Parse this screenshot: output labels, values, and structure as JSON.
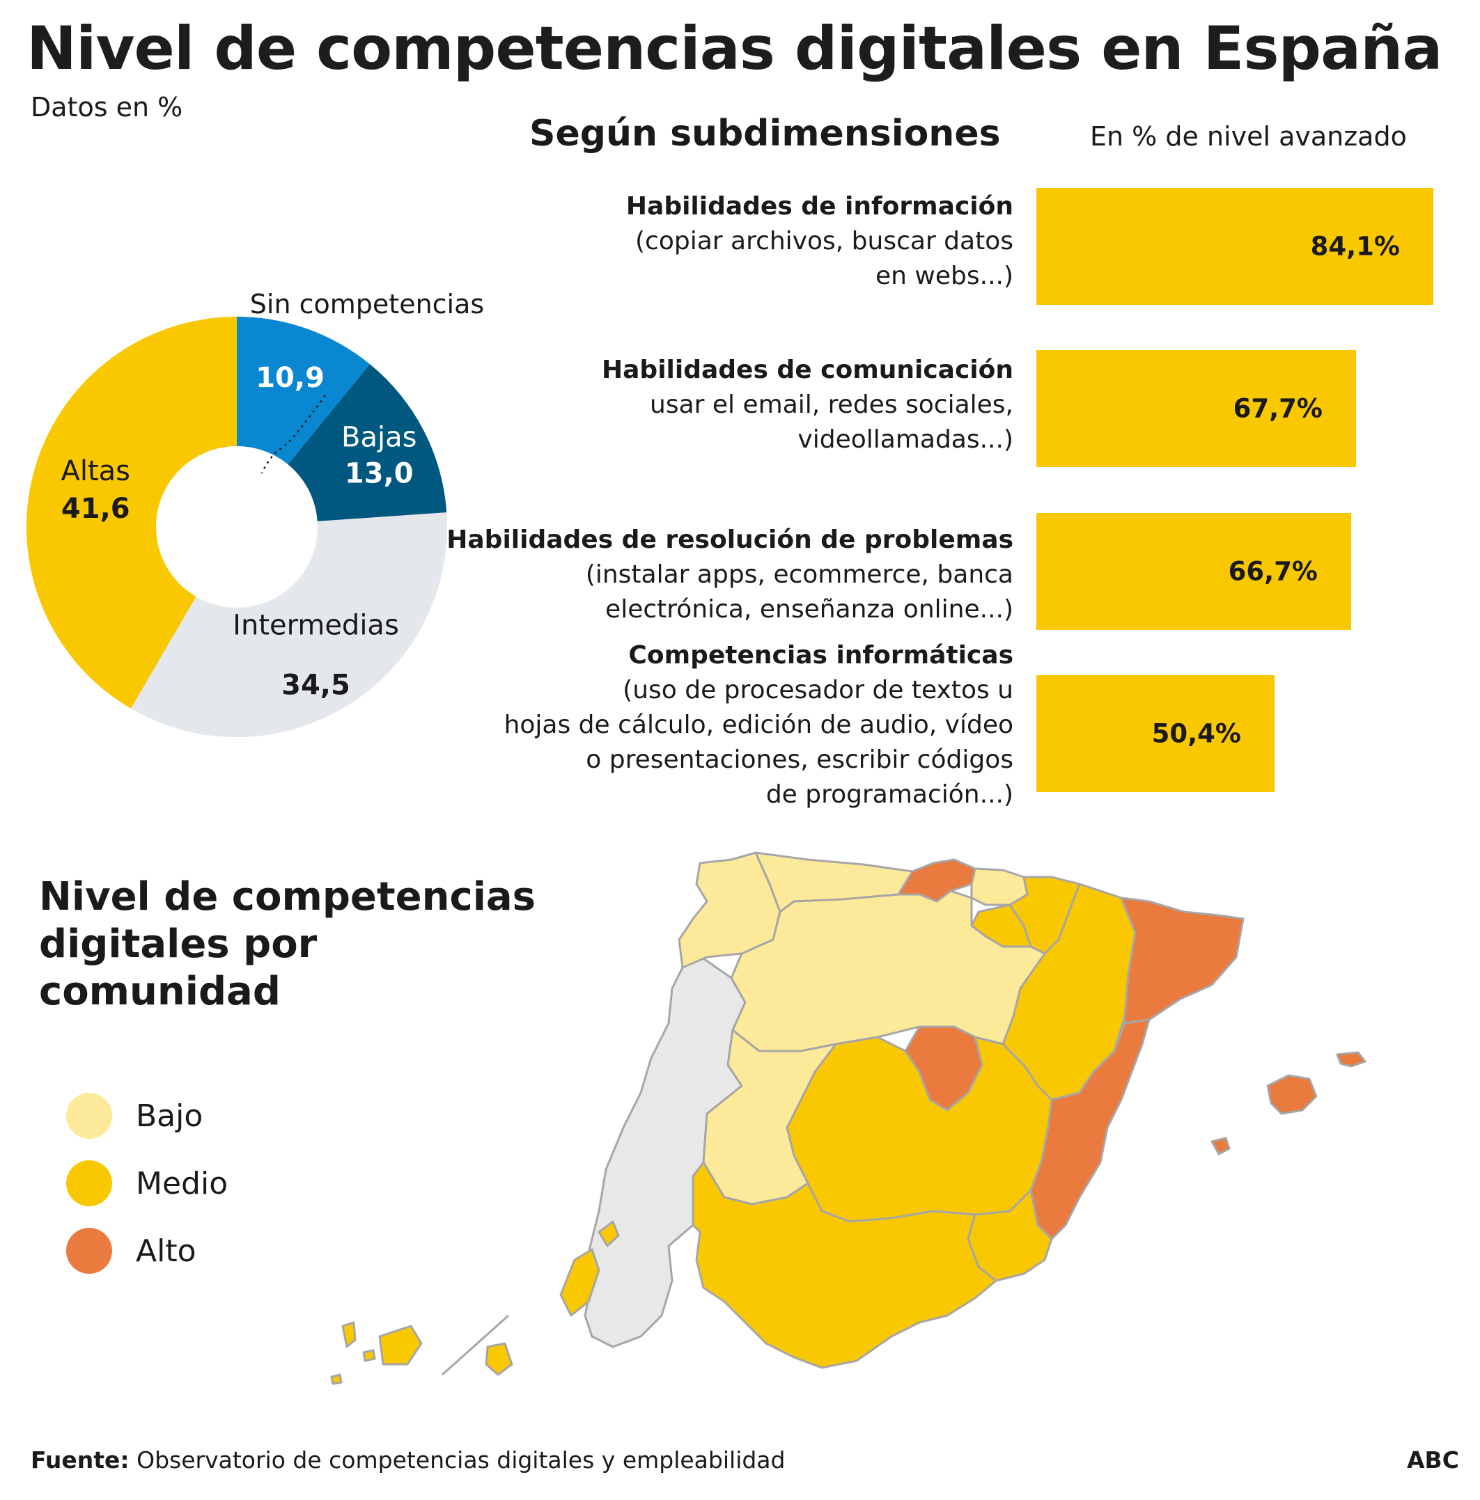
{
  "title": "Nivel de competencias digitales en España",
  "subtitle": "Datos en %",
  "colors": {
    "bajo": "#fde99a",
    "medio": "#fac800",
    "alto": "#ea7a3e",
    "sin": "#0a87d1",
    "bajas": "#005780",
    "intermedias": "#e4e8ed",
    "altas": "#fac800",
    "portugal": "#e8e8e8"
  },
  "donut": {
    "callout_label": "Sin competencias",
    "segments": [
      {
        "key": "sin",
        "name": "",
        "value": 10.9,
        "value_label": "10,9"
      },
      {
        "key": "bajas",
        "name": "Bajas",
        "value": 13.0,
        "value_label": "13,0"
      },
      {
        "key": "intermedias",
        "name": "Intermedias",
        "value": 34.5,
        "value_label": "34,5"
      },
      {
        "key": "altas",
        "name": "Altas",
        "value": 41.6,
        "value_label": "41,6"
      }
    ]
  },
  "bars_heading": "Según subdimensiones",
  "bars_unit": "En % de nivel avanzado",
  "bars": [
    {
      "title": "Habilidades de información",
      "desc": [
        "(copiar archivos, buscar datos",
        "en webs...)"
      ],
      "value": 84.1,
      "label": "84,1%"
    },
    {
      "title": "Habilidades de comunicación",
      "desc": [
        "usar el email, redes sociales,",
        "videollamadas...)"
      ],
      "value": 67.7,
      "label": "67,7%"
    },
    {
      "title": "Habilidades de resolución de problemas",
      "desc": [
        "(instalar apps, ecommerce, banca",
        "electrónica, enseñanza online...)"
      ],
      "value": 66.7,
      "label": "66,7%"
    },
    {
      "title": "Competencias informáticas",
      "desc": [
        "(uso de procesador de textos u",
        "hojas de cálculo, edición de audio, vídeo",
        "o presentaciones, escribir códigos",
        "de programación...)"
      ],
      "value": 50.4,
      "label": "50,4%"
    }
  ],
  "chart_data": [
    {
      "type": "pie",
      "title": "Nivel de competencias digitales en España",
      "subtitle": "Datos en %",
      "categories": [
        "Sin competencias",
        "Bajas",
        "Intermedias",
        "Altas"
      ],
      "values": [
        10.9,
        13.0,
        34.5,
        41.6
      ]
    },
    {
      "type": "bar",
      "title": "Según subdimensiones",
      "ylabel": "En % de nivel avanzado",
      "categories": [
        "Habilidades de información",
        "Habilidades de comunicación",
        "Habilidades de resolución de problemas",
        "Competencias informáticas"
      ],
      "values": [
        84.1,
        67.7,
        66.7,
        50.4
      ]
    }
  ],
  "map": {
    "heading": [
      "Nivel de competencias",
      "digitales por",
      "comunidad"
    ],
    "legend": [
      {
        "key": "bajo",
        "label": "Bajo"
      },
      {
        "key": "medio",
        "label": "Medio"
      },
      {
        "key": "alto",
        "label": "Alto"
      }
    ],
    "regions": [
      {
        "name": "Galicia",
        "level": "bajo"
      },
      {
        "name": "Asturias",
        "level": "bajo"
      },
      {
        "name": "Cantabria",
        "level": "alto"
      },
      {
        "name": "País Vasco",
        "level": "bajo"
      },
      {
        "name": "Navarra",
        "level": "medio"
      },
      {
        "name": "La Rioja",
        "level": "medio"
      },
      {
        "name": "Aragón",
        "level": "medio"
      },
      {
        "name": "Cataluña",
        "level": "alto"
      },
      {
        "name": "Castilla y León",
        "level": "bajo"
      },
      {
        "name": "Madrid",
        "level": "alto"
      },
      {
        "name": "Castilla-La Mancha",
        "level": "medio"
      },
      {
        "name": "Comunidad Valenciana",
        "level": "alto"
      },
      {
        "name": "Extremadura",
        "level": "bajo"
      },
      {
        "name": "Andalucía",
        "level": "medio"
      },
      {
        "name": "Murcia",
        "level": "medio"
      },
      {
        "name": "Baleares",
        "level": "alto"
      },
      {
        "name": "Canarias",
        "level": "medio"
      },
      {
        "name": "Portugal",
        "level": "portugal"
      }
    ]
  },
  "source_label": "Fuente:",
  "source_text": "Observatorio de competencias digitales y empleabilidad",
  "credit": "ABC"
}
